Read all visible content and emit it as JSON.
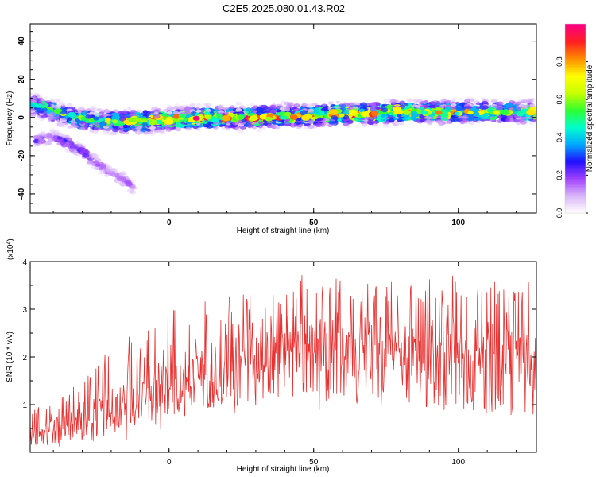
{
  "title": "C2E5.2025.080.01.43.R02",
  "chart_data": [
    {
      "type": "heatmap",
      "xlabel": "Height of straight line (km)",
      "ylabel": "Frequency (Hz)",
      "xlim": [
        -48,
        127
      ],
      "ylim": [
        -50,
        49
      ],
      "xticks": [
        0,
        50,
        100
      ],
      "yticks": [
        -40,
        -20,
        0,
        20,
        40
      ],
      "main_band": {
        "x": [
          -48,
          -40,
          -30,
          -20,
          -10,
          0,
          10,
          20,
          30,
          40,
          50,
          60,
          70,
          80,
          90,
          100,
          110,
          120,
          127
        ],
        "center_hz": [
          7,
          3,
          -1,
          -2,
          -2,
          -1,
          0,
          0,
          0,
          1,
          1,
          2,
          2,
          3,
          3,
          3,
          3,
          3,
          3
        ],
        "peak_amplitude": [
          0.55,
          0.6,
          0.65,
          0.7,
          0.85,
          0.9,
          0.95,
          0.9,
          0.95,
          0.9,
          0.85,
          0.9,
          0.85,
          0.9,
          0.85,
          0.8,
          0.75,
          0.7,
          0.85
        ]
      },
      "secondary_branch": {
        "x": [
          -46,
          -40,
          -35,
          -30,
          -25,
          -20,
          -15,
          -12
        ],
        "center_hz": [
          -12,
          -10,
          -13,
          -18,
          -24,
          -29,
          -33,
          -38
        ],
        "peak_amplitude": [
          0.25,
          0.2,
          0.3,
          0.25,
          0.2,
          0.15,
          0.2,
          0.15
        ]
      },
      "colorbar": {
        "label": "Normalized spectral amplitude",
        "range": [
          0,
          1
        ],
        "ticks": [
          0.0,
          0.2,
          0.4,
          0.6,
          0.8
        ],
        "colors": [
          "#ffffff",
          "#d8b4f8",
          "#a040ff",
          "#2010ff",
          "#00aaff",
          "#00ffcc",
          "#30ff30",
          "#c8ff00",
          "#ffff00",
          "#ff9000",
          "#ff2020",
          "#ff0080"
        ]
      }
    },
    {
      "type": "line",
      "xlabel": "Height of straight line (km)",
      "ylabel": "SNR (10 * v/v)",
      "y_multiplier": "(x10^4)",
      "xlim": [
        -48,
        127
      ],
      "ylim": [
        0,
        4
      ],
      "xticks": [
        0,
        50,
        100
      ],
      "yticks": [
        1,
        2,
        3,
        4
      ],
      "color": "#e83030",
      "envelope": {
        "x": [
          -48,
          -40,
          -30,
          -20,
          -10,
          0,
          10,
          20,
          30,
          40,
          50,
          60,
          70,
          80,
          90,
          100,
          110,
          120,
          127
        ],
        "lower": [
          0.05,
          0.1,
          0.2,
          0.35,
          0.55,
          0.7,
          0.8,
          0.9,
          0.95,
          1.0,
          1.0,
          1.0,
          0.95,
          0.95,
          0.9,
          0.85,
          0.8,
          0.75,
          0.7
        ],
        "mean": [
          0.35,
          0.55,
          0.75,
          0.95,
          1.2,
          1.45,
          1.65,
          1.85,
          2.0,
          2.15,
          2.2,
          2.2,
          2.15,
          2.15,
          2.1,
          2.05,
          2.0,
          1.95,
          1.9
        ],
        "upper": [
          0.9,
          1.2,
          1.6,
          2.2,
          2.6,
          3.0,
          3.2,
          3.3,
          3.4,
          3.6,
          3.8,
          3.7,
          3.6,
          3.6,
          3.7,
          3.8,
          3.7,
          3.6,
          3.7
        ]
      }
    }
  ]
}
